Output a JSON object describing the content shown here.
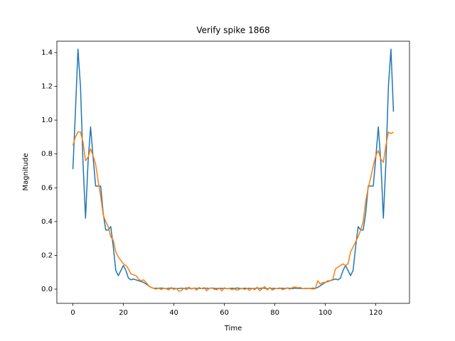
{
  "chart_data": {
    "type": "line",
    "title": "Verify spike 1868",
    "x_label": "Time",
    "y_label": "Magnitude",
    "x": [
      0,
      1,
      2,
      3,
      4,
      5,
      6,
      7,
      8,
      9,
      10,
      11,
      12,
      13,
      14,
      15,
      16,
      17,
      18,
      19,
      20,
      21,
      22,
      23,
      24,
      25,
      26,
      27,
      28,
      29,
      30,
      31,
      32,
      33,
      34,
      35,
      36,
      37,
      38,
      39,
      40,
      41,
      42,
      43,
      44,
      45,
      46,
      47,
      48,
      49,
      50,
      51,
      52,
      53,
      54,
      55,
      56,
      57,
      58,
      59,
      60,
      61,
      62,
      63,
      64,
      65,
      66,
      67,
      68,
      69,
      70,
      71,
      72,
      73,
      74,
      75,
      76,
      77,
      78,
      79,
      80,
      81,
      82,
      83,
      84,
      85,
      86,
      87,
      88,
      89,
      90,
      91,
      92,
      93,
      94,
      95,
      96,
      97,
      98,
      99,
      100,
      101,
      102,
      103,
      104,
      105,
      106,
      107,
      108,
      109,
      110,
      111,
      112,
      113,
      114,
      115,
      116,
      117,
      118,
      119,
      120,
      121,
      122,
      123,
      124,
      125,
      126,
      127
    ],
    "series": [
      {
        "color": "#1f77b4",
        "values": [
          0.71,
          1.05,
          1.42,
          1.2,
          0.75,
          0.42,
          0.75,
          0.96,
          0.78,
          0.61,
          0.61,
          0.61,
          0.45,
          0.35,
          0.35,
          0.37,
          0.25,
          0.11,
          0.08,
          0.11,
          0.14,
          0.11,
          0.065,
          0.055,
          0.06,
          0.055,
          0.05,
          0.045,
          0.04,
          0.03,
          0.02,
          0.01,
          0.005,
          0.006,
          0.004,
          0.007,
          0.005,
          0.003,
          0.006,
          0.004,
          0.005,
          0.003,
          0.004,
          0.006,
          0.004,
          0.007,
          0.005,
          0.003,
          0.006,
          0.004,
          0.005,
          0.003,
          0.004,
          0.006,
          0.004,
          0.007,
          0.005,
          0.003,
          0.006,
          0.004,
          0.005,
          0.003,
          0.004,
          0.006,
          0.004,
          0.007,
          0.005,
          0.003,
          0.006,
          0.004,
          0.005,
          0.003,
          0.004,
          0.006,
          0.004,
          0.007,
          0.005,
          0.003,
          0.006,
          0.004,
          0.005,
          0.003,
          0.004,
          0.006,
          0.004,
          0.007,
          0.005,
          0.003,
          0.006,
          0.004,
          0.005,
          0.003,
          0.004,
          0.005,
          0.004,
          0.006,
          0.005,
          0.01,
          0.02,
          0.03,
          0.04,
          0.045,
          0.05,
          0.055,
          0.06,
          0.055,
          0.065,
          0.11,
          0.14,
          0.11,
          0.08,
          0.11,
          0.25,
          0.37,
          0.35,
          0.35,
          0.45,
          0.61,
          0.61,
          0.61,
          0.78,
          0.96,
          0.75,
          0.42,
          0.75,
          1.2,
          1.42,
          1.05
        ]
      },
      {
        "color": "#ff7f0e",
        "values": [
          0.85,
          0.9,
          0.93,
          0.93,
          0.87,
          0.76,
          0.78,
          0.83,
          0.79,
          0.74,
          0.64,
          0.55,
          0.44,
          0.4,
          0.37,
          0.31,
          0.29,
          0.22,
          0.19,
          0.17,
          0.15,
          0.14,
          0.12,
          0.09,
          0.085,
          0.08,
          0.06,
          0.05,
          0.055,
          0.04,
          0.02,
          0.01,
          0.005,
          0.0,
          0.008,
          -0.003,
          0.006,
          0.002,
          -0.005,
          0.01,
          -0.002,
          0.004,
          -0.012,
          -0.008,
          0.006,
          -0.004,
          0.012,
          0.0,
          0.008,
          -0.006,
          0.01,
          0.003,
          0.01,
          -0.01,
          0.005,
          0.007,
          0.0,
          -0.004,
          0.006,
          -0.01,
          0.008,
          0.002,
          0.004,
          -0.003,
          0.002,
          -0.006,
          0.0,
          0.005,
          -0.002,
          0.004,
          -0.008,
          0.006,
          -0.004,
          0.012,
          -0.01,
          0.003,
          0.015,
          -0.005,
          0.01,
          -0.006,
          0.002,
          0.004,
          0.008,
          -0.003,
          0.002,
          0.006,
          0.0,
          0.01,
          0.012,
          0.008,
          0.01,
          0.004,
          0.002,
          0.006,
          0.003,
          0.001,
          0.002,
          0.05,
          0.03,
          0.04,
          0.04,
          0.05,
          0.05,
          0.06,
          0.12,
          0.13,
          0.14,
          0.15,
          0.14,
          0.15,
          0.22,
          0.25,
          0.28,
          0.31,
          0.35,
          0.4,
          0.52,
          0.6,
          0.66,
          0.73,
          0.79,
          0.82,
          0.77,
          0.75,
          0.85,
          0.93,
          0.92,
          0.93
        ]
      }
    ],
    "xlim": [
      -6.35,
      133.35
    ],
    "xticks": [
      0,
      20,
      40,
      60,
      80,
      100,
      120
    ],
    "ylim": [
      -0.084,
      1.467
    ],
    "yticks": [
      {
        "value": 0,
        "label": "0.0"
      },
      0.2,
      0.4,
      0.6,
      0.8,
      {
        "value": 1,
        "label": "1.0"
      },
      1.2,
      1.4
    ],
    "grid": false
  }
}
